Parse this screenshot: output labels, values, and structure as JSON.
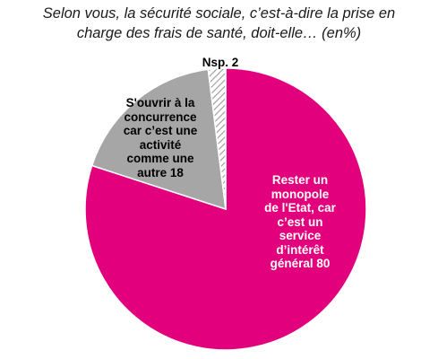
{
  "chart_data": {
    "type": "pie",
    "title_lines": [
      "Selon vous, la sécurité sociale, c’est-à-dire la prise en",
      "charge des frais de santé, doit-elle… (en%)"
    ],
    "slices": [
      {
        "label_lines": [
          "Rester un",
          "monopole",
          "de l'Etat, car",
          "c’est un",
          "service",
          "d’intérêt",
          "général  80"
        ],
        "value": 80,
        "color": "#e3007d",
        "pattern": "solid"
      },
      {
        "label_lines": [
          "S'ouvrir à la",
          "concurrence",
          "car c’est une",
          "activité",
          "comme une",
          "autre   18"
        ],
        "value": 18,
        "color": "#a6a6a6",
        "pattern": "solid"
      },
      {
        "label_lines": [
          "Nsp. 2"
        ],
        "value": 2,
        "color": "#ffffff",
        "pattern": "hatched"
      }
    ]
  }
}
